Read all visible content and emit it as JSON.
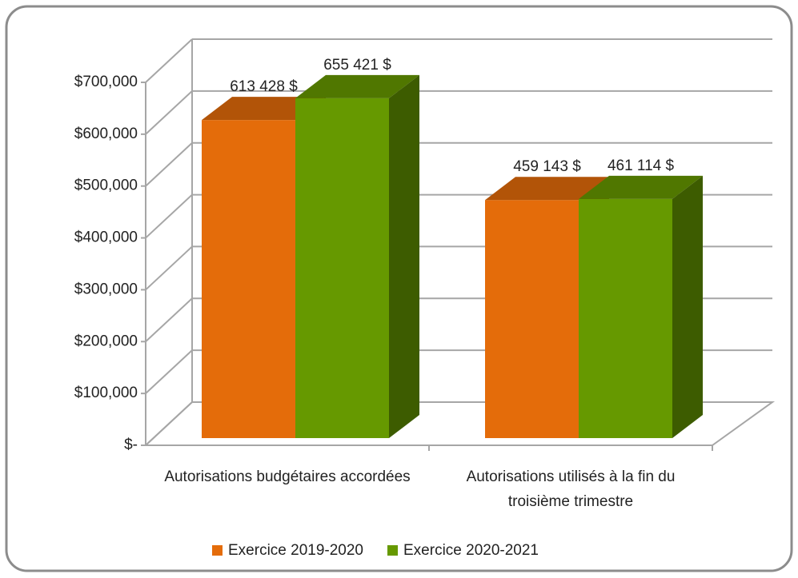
{
  "chart_data": {
    "type": "bar3d",
    "categories": [
      "Autorisations budgétaires accordées",
      "Autorisations utilisés à la fin du troisième trimestre"
    ],
    "series": [
      {
        "name": "Exercice 2019-2020",
        "color": "#e46c0a",
        "values": [
          613428,
          459143
        ],
        "value_labels": [
          "613 428 $",
          "459 143 $"
        ]
      },
      {
        "name": "Exercice 2020-2021",
        "color": "#669900",
        "values": [
          655421,
          461114
        ],
        "value_labels": [
          "655 421 $",
          "461 114 $"
        ]
      }
    ],
    "ylim": [
      0,
      700000
    ],
    "yticks": [
      {
        "value": 0,
        "label": "$-"
      },
      {
        "value": 100000,
        "label": "$100,000"
      },
      {
        "value": 200000,
        "label": "$200,000"
      },
      {
        "value": 300000,
        "label": "$300,000"
      },
      {
        "value": 400000,
        "label": "$400,000"
      },
      {
        "value": 500000,
        "label": "$500,000"
      },
      {
        "value": 600000,
        "label": "$600,000"
      },
      {
        "value": 700000,
        "label": "$700,000"
      }
    ],
    "grid": true,
    "legend": "bottom"
  }
}
